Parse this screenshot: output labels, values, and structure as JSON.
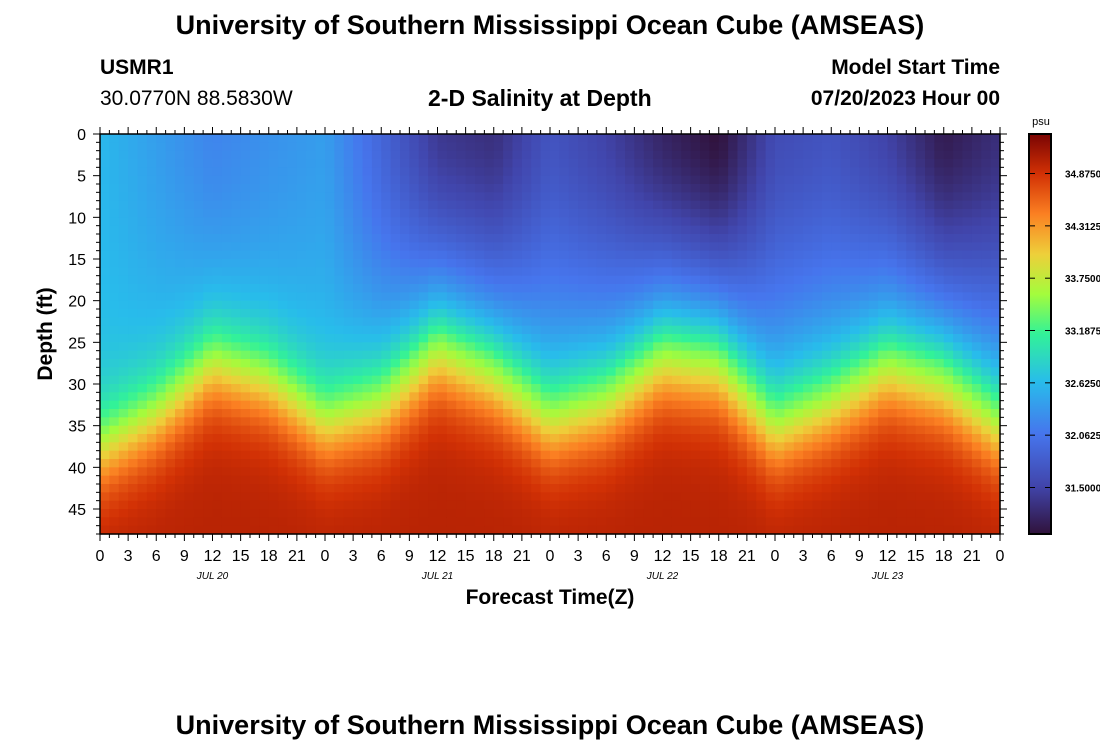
{
  "page": {
    "title": "University of Southern Mississippi Ocean Cube (AMSEAS)",
    "station_id": "USMR1",
    "station_coords": "30.0770N  88.5830W",
    "subtitle": "2-D Salinity at Depth",
    "model_start_label": "Model Start Time",
    "model_start_value": "07/20/2023 Hour 00",
    "footer_title": "University of Southern Mississippi Ocean Cube (AMSEAS)"
  },
  "chart_data": {
    "type": "heatmap",
    "title": "2-D Salinity at Depth",
    "xlabel": "Forecast Time(Z)",
    "ylabel": "Depth (ft)",
    "x_range_hours": [
      0,
      96
    ],
    "y_range_ft": [
      0,
      48
    ],
    "y_ticks": [
      0,
      5,
      10,
      15,
      20,
      25,
      30,
      35,
      40,
      45
    ],
    "x_tick_labels": [
      "0",
      "3",
      "6",
      "9",
      "12",
      "15",
      "18",
      "21",
      "0",
      "3",
      "6",
      "9",
      "12",
      "15",
      "18",
      "21",
      "0",
      "3",
      "6",
      "9",
      "12",
      "15",
      "18",
      "21",
      "0",
      "3",
      "6",
      "9",
      "12",
      "15",
      "18",
      "21",
      "0"
    ],
    "day_labels": [
      {
        "text": "JUL 20",
        "hour": 12
      },
      {
        "text": "JUL 21",
        "hour": 36
      },
      {
        "text": "JUL 22",
        "hour": 60
      },
      {
        "text": "JUL 23",
        "hour": 84
      }
    ],
    "colorbar": {
      "unit": "psu",
      "min": 31.0,
      "max": 35.3,
      "ticks": [
        34.875,
        34.3125,
        33.75,
        33.1875,
        32.625,
        32.0625,
        31.5
      ],
      "tick_labels": [
        "34.8750",
        "34.3125",
        "33.7500",
        "33.1875",
        "32.6250",
        "32.0625",
        "31.5000"
      ]
    },
    "surface_salinity_profile": {
      "hours": [
        0,
        6,
        12,
        18,
        24,
        30,
        36,
        42,
        48,
        54,
        60,
        66,
        72,
        78,
        84,
        90,
        96
      ],
      "psu": [
        32.6,
        32.4,
        32.2,
        32.3,
        32.4,
        31.9,
        31.4,
        31.3,
        31.7,
        31.5,
        31.2,
        31.0,
        31.6,
        31.7,
        31.5,
        31.1,
        31.3
      ]
    },
    "halocline_depth_ft": {
      "hours": [
        0,
        6,
        12,
        18,
        24,
        30,
        36,
        42,
        48,
        54,
        60,
        66,
        72,
        78,
        84,
        90,
        96
      ],
      "depth": [
        38,
        34,
        28,
        30,
        35,
        33,
        27,
        30,
        35,
        33,
        28,
        29,
        36,
        33,
        29,
        31,
        36
      ]
    },
    "bottom_salinity_psu": 35.0
  }
}
